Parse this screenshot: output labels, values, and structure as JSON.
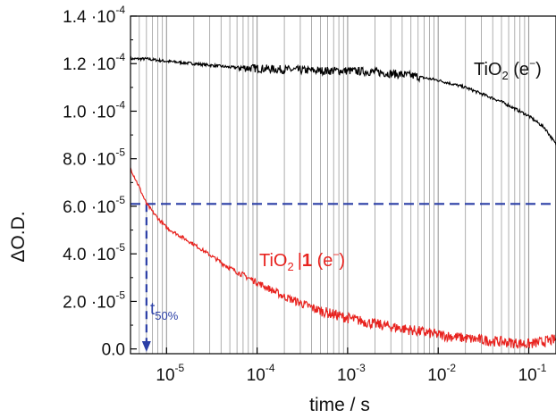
{
  "chart_data": {
    "type": "line",
    "xlabel": "time / s",
    "ylabel": "ΔO.D.",
    "xscale": "log",
    "xlim": [
      4e-06,
      0.2
    ],
    "ylim": [
      -2e-06,
      0.00014
    ],
    "grid": "vertical log minor + major",
    "x_ticks": [
      {
        "value": 1e-05,
        "mant": "10",
        "exp": "-5"
      },
      {
        "value": 0.0001,
        "mant": "10",
        "exp": "-4"
      },
      {
        "value": 0.001,
        "mant": "10",
        "exp": "-3"
      },
      {
        "value": 0.01,
        "mant": "10",
        "exp": "-2"
      },
      {
        "value": 0.1,
        "mant": "10",
        "exp": "-1"
      }
    ],
    "y_ticks": [
      {
        "value": 0.0,
        "mant": "0.0",
        "exp": ""
      },
      {
        "value": 2e-05,
        "mant": "2.0 ·10",
        "exp": "-5"
      },
      {
        "value": 4e-05,
        "mant": "4.0 ·10",
        "exp": "-5"
      },
      {
        "value": 6e-05,
        "mant": "6.0 ·10",
        "exp": "-5"
      },
      {
        "value": 8e-05,
        "mant": "8.0 ·10",
        "exp": "-5"
      },
      {
        "value": 0.0001,
        "mant": "1.0 ·10",
        "exp": "-4"
      },
      {
        "value": 0.00012,
        "mant": "1.2 ·10",
        "exp": "-4"
      },
      {
        "value": 0.00014,
        "mant": "1.4 ·10",
        "exp": "-4"
      }
    ],
    "series": [
      {
        "name": "TiO2 (e−)",
        "color": "#000000",
        "x": [
          4e-06,
          6e-06,
          1e-05,
          2e-05,
          5e-05,
          0.0001,
          0.0002,
          0.0005,
          0.001,
          0.002,
          0.005,
          0.01,
          0.02,
          0.05,
          0.1,
          0.15,
          0.2
        ],
        "y": [
          0.000122,
          0.000122,
          0.000121,
          0.00012,
          0.0001185,
          0.000118,
          0.0001175,
          0.000117,
          0.000117,
          0.0001165,
          0.000115,
          0.000113,
          0.00011,
          0.000104,
          9.8e-05,
          9.3e-05,
          8.6e-05
        ]
      },
      {
        "name": "TiO2|1 (e−)",
        "color": "#e8231f",
        "x": [
          4e-06,
          5e-06,
          6e-06,
          8e-06,
          1e-05,
          2e-05,
          5e-05,
          0.0001,
          0.0002,
          0.0005,
          0.001,
          0.002,
          0.005,
          0.01,
          0.02,
          0.05,
          0.1,
          0.2
        ],
        "y": [
          7.6e-05,
          6.8e-05,
          6.1e-05,
          5.5e-05,
          5.1e-05,
          4.4e-05,
          3.4e-05,
          2.8e-05,
          2.2e-05,
          1.6e-05,
          1.3e-05,
          1.05e-05,
          8e-06,
          6e-06,
          4.5e-06,
          3e-06,
          2e-06,
          4e-06
        ]
      }
    ],
    "annotations": {
      "hline_value": 6.1e-05,
      "hline_color": "#2b3fa6",
      "t50_x": 6e-06,
      "t50_label": "t",
      "t50_sub": "50%",
      "label_tio2_main": "TiO",
      "label_tio2_sub": "2",
      "label_tio2_tail": " (e",
      "label_tio2_sup": "−",
      "label_tio2_close": ")",
      "label_red_main": "TiO",
      "label_red_sub": "2",
      "label_red_bold": "1",
      "label_red_tail": " (e",
      "label_red_sup": "−",
      "label_red_close": ")"
    }
  }
}
